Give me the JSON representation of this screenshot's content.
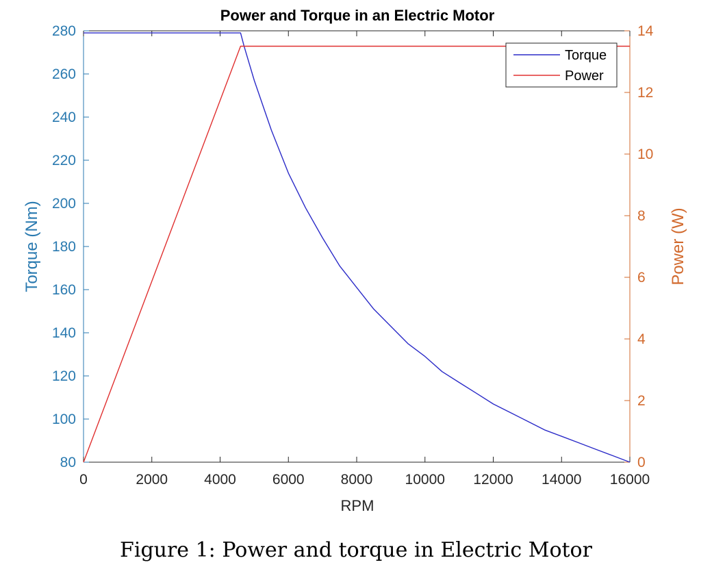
{
  "chart_data": {
    "type": "line",
    "title": "Power and Torque in an Electric Motor",
    "xlabel": "RPM",
    "ylabel_left": "Torque (Nm)",
    "ylabel_right": "Power (W)",
    "xlim": [
      0,
      16000
    ],
    "ylim_left": [
      80,
      280
    ],
    "ylim_right": [
      0,
      14
    ],
    "x_ticks": [
      "0",
      "2000",
      "4000",
      "6000",
      "8000",
      "10000",
      "12000",
      "14000",
      "16000"
    ],
    "y_left_ticks": [
      "80",
      "100",
      "120",
      "140",
      "160",
      "180",
      "200",
      "220",
      "240",
      "260",
      "280"
    ],
    "y_right_ticks": [
      "0",
      "2",
      "4",
      "6",
      "8",
      "10",
      "12",
      "14"
    ],
    "grid": false,
    "legend_position": "top-right",
    "series": [
      {
        "name": "Torque",
        "axis": "left",
        "color": "#2b2bc8",
        "points": [
          [
            0,
            279
          ],
          [
            4600,
            279
          ],
          [
            4700,
            273
          ],
          [
            5000,
            257
          ],
          [
            5500,
            234
          ],
          [
            6000,
            214
          ],
          [
            6500,
            198
          ],
          [
            7000,
            184
          ],
          [
            7500,
            171
          ],
          [
            8000,
            161
          ],
          [
            8500,
            151
          ],
          [
            9000,
            143
          ],
          [
            9500,
            135
          ],
          [
            10000,
            129
          ],
          [
            10500,
            122
          ],
          [
            11000,
            117
          ],
          [
            11500,
            112
          ],
          [
            12000,
            107
          ],
          [
            12500,
            103
          ],
          [
            13000,
            99
          ],
          [
            13500,
            95
          ],
          [
            14000,
            92
          ],
          [
            14500,
            89
          ],
          [
            15000,
            86
          ],
          [
            15500,
            83
          ],
          [
            16000,
            80
          ]
        ]
      },
      {
        "name": "Power",
        "axis": "right",
        "color": "#e03030",
        "points": [
          [
            0,
            0
          ],
          [
            4600,
            13.5
          ],
          [
            16000,
            13.5
          ]
        ]
      }
    ],
    "colors": {
      "left_axis": "#2a7ab0",
      "right_axis": "#d26a2e",
      "black_axis": "#262626"
    }
  },
  "caption": "Figure 1: Power and torque in Electric Motor"
}
